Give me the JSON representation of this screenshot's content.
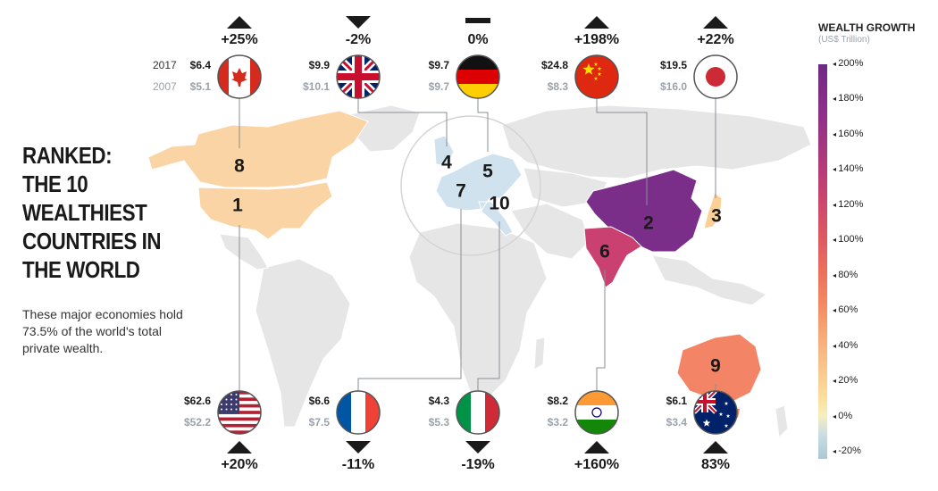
{
  "title_lines": [
    "RANKED:",
    "THE 10",
    "WEALTHIEST",
    "COUNTRIES IN",
    "THE WORLD"
  ],
  "subtitle": "These major economies hold 73.5% of the world's total private wealth.",
  "year_labels": {
    "current": "2017",
    "previous": "2007"
  },
  "legend": {
    "title": "WEALTH GROWTH",
    "subtitle": "(US$ Trillion)",
    "ticks": [
      "200%",
      "180%",
      "160%",
      "140%",
      "120%",
      "100%",
      "80%",
      "60%",
      "40%",
      "20%",
      "0%",
      "-20%"
    ]
  },
  "countries": [
    {
      "key": "canada",
      "name": "Canada",
      "rank": "8",
      "value_2017": "$6.4",
      "value_2007": "$5.1",
      "growth": "+25%",
      "direction": "up",
      "growth_value": 25,
      "flag": "canada-flag-icon"
    },
    {
      "key": "uk",
      "name": "United Kingdom",
      "rank": "4",
      "value_2017": "$9.9",
      "value_2007": "$10.1",
      "growth": "-2%",
      "direction": "down",
      "growth_value": -2,
      "flag": "uk-flag-icon"
    },
    {
      "key": "germany",
      "name": "Germany",
      "rank": "5",
      "value_2017": "$9.7",
      "value_2007": "$9.7",
      "growth": "0%",
      "direction": "flat",
      "growth_value": 0,
      "flag": "germany-flag-icon"
    },
    {
      "key": "china",
      "name": "China",
      "rank": "2",
      "value_2017": "$24.8",
      "value_2007": "$8.3",
      "growth": "+198%",
      "direction": "up",
      "growth_value": 198,
      "flag": "china-flag-icon"
    },
    {
      "key": "japan",
      "name": "Japan",
      "rank": "3",
      "value_2017": "$19.5",
      "value_2007": "$16.0",
      "growth": "+22%",
      "direction": "up",
      "growth_value": 22,
      "flag": "japan-flag-icon"
    },
    {
      "key": "usa",
      "name": "United States",
      "rank": "1",
      "value_2017": "$62.6",
      "value_2007": "$52.2",
      "growth": "+20%",
      "direction": "up",
      "growth_value": 20,
      "flag": "usa-flag-icon"
    },
    {
      "key": "france",
      "name": "France",
      "rank": "7",
      "value_2017": "$6.6",
      "value_2007": "$7.5",
      "growth": "-11%",
      "direction": "down",
      "growth_value": -11,
      "flag": "france-flag-icon"
    },
    {
      "key": "italy",
      "name": "Italy",
      "rank": "10",
      "value_2017": "$4.3",
      "value_2007": "$5.3",
      "growth": "-19%",
      "direction": "down",
      "growth_value": -19,
      "flag": "italy-flag-icon"
    },
    {
      "key": "india",
      "name": "India",
      "rank": "6",
      "value_2017": "$8.2",
      "value_2007": "$3.2",
      "growth": "+160%",
      "direction": "up",
      "growth_value": 160,
      "flag": "india-flag-icon"
    },
    {
      "key": "australia",
      "name": "Australia",
      "rank": "9",
      "value_2017": "$6.1",
      "value_2007": "$3.4",
      "growth": "83%",
      "direction": "up",
      "growth_value": 83,
      "flag": "australia-flag-icon"
    }
  ],
  "colors": {
    "land": "#e6e6e6",
    "us_canada": "#fad4a4",
    "japan": "#fbcf95",
    "europe": "#cfe2ee",
    "china": "#7b2d8a",
    "india": "#c94071",
    "australia": "#f48466",
    "connector": "#8a8f94"
  }
}
